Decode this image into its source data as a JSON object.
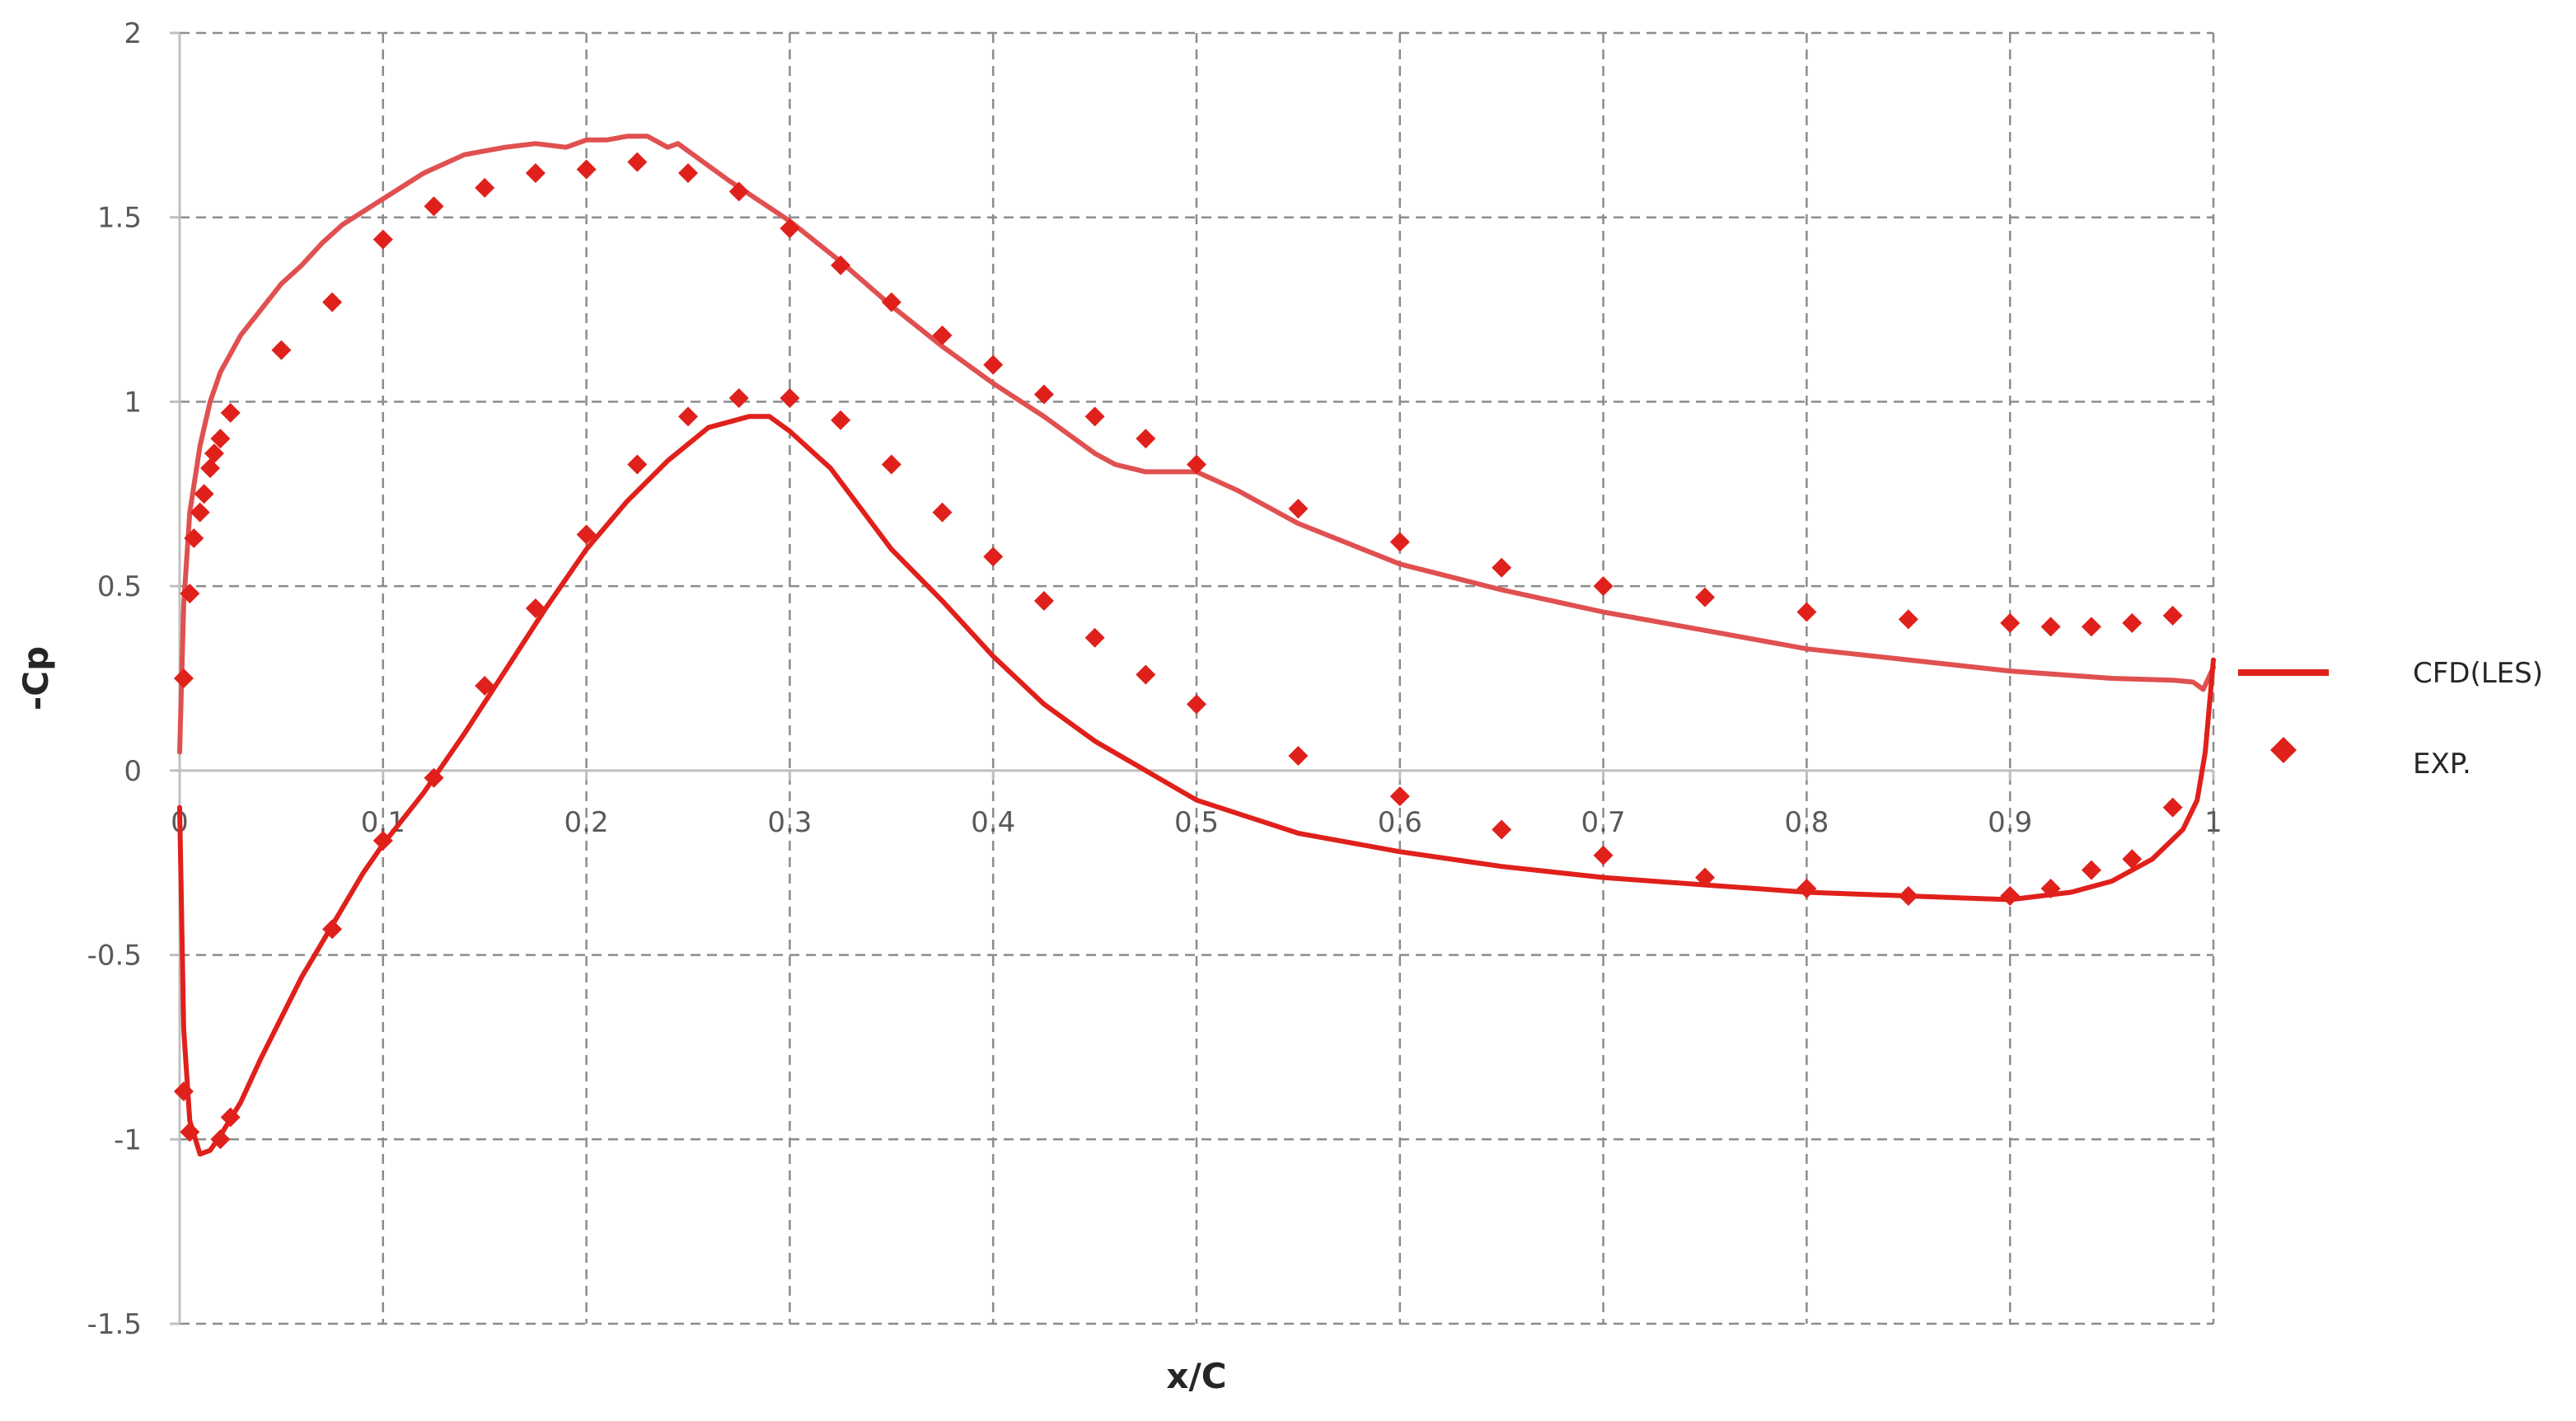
{
  "chart_data": {
    "type": "line",
    "title": "",
    "xlabel": "x/C",
    "ylabel": "-Cp",
    "xlim": [
      0,
      1
    ],
    "ylim": [
      -1.5,
      2
    ],
    "grid": true,
    "legend_position": "right",
    "x_ticks": [
      "0",
      "0.1",
      "0.2",
      "0.3",
      "0.4",
      "0.5",
      "0.6",
      "0.7",
      "0.8",
      "0.9",
      "1"
    ],
    "y_ticks": [
      "-1.5",
      "-1",
      "-0.5",
      "0",
      "0.5",
      "1",
      "1.5",
      "2"
    ],
    "colors": {
      "series_line": "#e0201b",
      "series_line_upper": "#e05050",
      "markers": "#e0201b",
      "grid": "#8c8c8c",
      "axis": "#bfbfbf"
    },
    "series": [
      {
        "name": "CFD(LES)",
        "kind": "line",
        "segments": [
          {
            "x": [
              0,
              0.002,
              0.005,
              0.01,
              0.015,
              0.02,
              0.025,
              0.03,
              0.04,
              0.05,
              0.06,
              0.07,
              0.08,
              0.1,
              0.12,
              0.14,
              0.16,
              0.175,
              0.19,
              0.2,
              0.21,
              0.22,
              0.23,
              0.24,
              0.245,
              0.25,
              0.27,
              0.3,
              0.325,
              0.35,
              0.375,
              0.4,
              0.425,
              0.45,
              0.46,
              0.475,
              0.49,
              0.5,
              0.52,
              0.55,
              0.6,
              0.65,
              0.7,
              0.75,
              0.8,
              0.85,
              0.9,
              0.95,
              0.98,
              0.99,
              0.995,
              1.0
            ],
            "y": [
              0.05,
              0.45,
              0.7,
              0.88,
              1.0,
              1.08,
              1.13,
              1.18,
              1.25,
              1.32,
              1.37,
              1.43,
              1.48,
              1.55,
              1.62,
              1.67,
              1.69,
              1.7,
              1.69,
              1.71,
              1.71,
              1.72,
              1.72,
              1.69,
              1.7,
              1.68,
              1.6,
              1.49,
              1.38,
              1.26,
              1.15,
              1.05,
              0.96,
              0.86,
              0.83,
              0.81,
              0.81,
              0.81,
              0.76,
              0.67,
              0.56,
              0.49,
              0.43,
              0.38,
              0.33,
              0.3,
              0.27,
              0.25,
              0.245,
              0.24,
              0.22,
              0.28
            ]
          },
          {
            "x": [
              0,
              0.002,
              0.005,
              0.01,
              0.015,
              0.02,
              0.03,
              0.04,
              0.05,
              0.06,
              0.075,
              0.09,
              0.1,
              0.12,
              0.14,
              0.16,
              0.18,
              0.2,
              0.22,
              0.24,
              0.26,
              0.28,
              0.29,
              0.3,
              0.32,
              0.35,
              0.375,
              0.4,
              0.425,
              0.45,
              0.475,
              0.5,
              0.55,
              0.6,
              0.65,
              0.7,
              0.75,
              0.8,
              0.85,
              0.9,
              0.93,
              0.95,
              0.97,
              0.985,
              0.992,
              0.996,
              1.0
            ],
            "y": [
              -0.1,
              -0.7,
              -0.95,
              -1.04,
              -1.03,
              -0.99,
              -0.9,
              -0.78,
              -0.67,
              -0.56,
              -0.42,
              -0.28,
              -0.2,
              -0.06,
              0.1,
              0.27,
              0.44,
              0.6,
              0.73,
              0.84,
              0.93,
              0.96,
              0.96,
              0.92,
              0.82,
              0.6,
              0.46,
              0.31,
              0.18,
              0.08,
              0.0,
              -0.08,
              -0.17,
              -0.22,
              -0.26,
              -0.29,
              -0.31,
              -0.33,
              -0.34,
              -0.35,
              -0.33,
              -0.3,
              -0.24,
              -0.16,
              -0.08,
              0.05,
              0.3
            ]
          }
        ]
      },
      {
        "name": "EXP.",
        "kind": "marker",
        "points": {
          "x": [
            0.002,
            0.005,
            0.007,
            0.01,
            0.012,
            0.015,
            0.017,
            0.02,
            0.025,
            0.05,
            0.075,
            0.1,
            0.125,
            0.15,
            0.175,
            0.2,
            0.225,
            0.25,
            0.275,
            0.3,
            0.325,
            0.35,
            0.375,
            0.4,
            0.425,
            0.45,
            0.475,
            0.5,
            0.55,
            0.6,
            0.65,
            0.7,
            0.75,
            0.8,
            0.85,
            0.9,
            0.92,
            0.94,
            0.96,
            0.98,
            0.002,
            0.005,
            0.02,
            0.025,
            0.075,
            0.1,
            0.125,
            0.15,
            0.175,
            0.2,
            0.225,
            0.25,
            0.275,
            0.3,
            0.325,
            0.35,
            0.375,
            0.4,
            0.425,
            0.45,
            0.475,
            0.5,
            0.55,
            0.6,
            0.65,
            0.7,
            0.75,
            0.8,
            0.85,
            0.9,
            0.92,
            0.94,
            0.96,
            0.98
          ],
          "y": [
            0.25,
            0.48,
            0.63,
            0.7,
            0.75,
            0.82,
            0.86,
            0.9,
            0.97,
            1.14,
            1.27,
            1.44,
            1.53,
            1.58,
            1.62,
            1.63,
            1.65,
            1.62,
            1.57,
            1.47,
            1.37,
            1.27,
            1.18,
            1.1,
            1.02,
            0.96,
            0.9,
            0.83,
            0.71,
            0.62,
            0.55,
            0.5,
            0.47,
            0.43,
            0.41,
            0.4,
            0.39,
            0.39,
            0.4,
            0.42,
            -0.87,
            -0.98,
            -1.0,
            -0.94,
            -0.43,
            -0.19,
            -0.02,
            0.23,
            0.44,
            0.64,
            0.83,
            0.96,
            1.01,
            1.01,
            0.95,
            0.83,
            0.7,
            0.58,
            0.46,
            0.36,
            0.26,
            0.18,
            0.04,
            -0.07,
            -0.16,
            -0.23,
            -0.29,
            -0.32,
            -0.34,
            -0.34,
            -0.32,
            -0.27,
            -0.24,
            -0.1
          ]
        }
      }
    ]
  }
}
